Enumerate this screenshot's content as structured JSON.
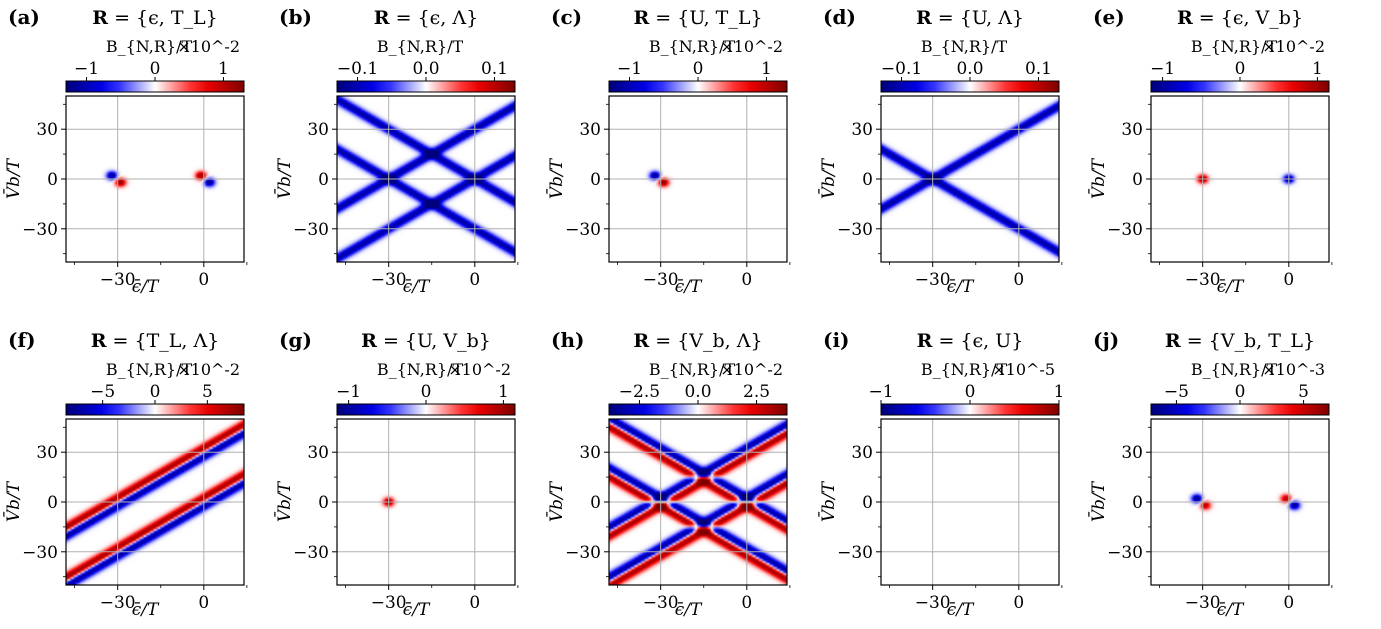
{
  "colors": {
    "neg": "#00007a",
    "mid": "#ffffff",
    "pos": "#800000",
    "grid": "#b0b0b0"
  },
  "chart_data": [
    {
      "panel_label": "(a)",
      "title": "R = {ϵ, T_L}",
      "type": "heatmap",
      "colorbar_label": "B_{N,R}/T",
      "colorbar_scale": "×10^-2",
      "colorbar_ticks": [
        "−1",
        "0",
        "1"
      ],
      "colorbar_range": [
        -1.3,
        1.3
      ],
      "xlabel": "ϵ̄/T",
      "ylabel": "V̄b/T",
      "xlim": [
        -48,
        14
      ],
      "ylim": [
        -50,
        50
      ],
      "xticks": [
        "−30",
        "0"
      ],
      "yticks": [
        "30",
        "0",
        "−30"
      ],
      "features": [
        {
          "kind": "blob",
          "x": -32,
          "y": 2,
          "sign": -1,
          "amp": 1.0
        },
        {
          "kind": "blob",
          "x": -29,
          "y": -2,
          "sign": 1,
          "amp": 1.0
        },
        {
          "kind": "blob",
          "x": -1,
          "y": 2,
          "sign": 1,
          "amp": 1.0
        },
        {
          "kind": "blob",
          "x": 2,
          "y": -2,
          "sign": -1,
          "amp": 1.0
        }
      ]
    },
    {
      "panel_label": "(b)",
      "title": "R = {ϵ, Λ}",
      "type": "heatmap",
      "colorbar_label": "B_{N,R}/T",
      "colorbar_scale": "",
      "colorbar_ticks": [
        "−0.1",
        "0.0",
        "0.1"
      ],
      "colorbar_range": [
        -0.13,
        0.13
      ],
      "xlabel": "ϵ̄/T",
      "ylabel": "V̄b/T",
      "xlim": [
        -48,
        14
      ],
      "ylim": [
        -50,
        50
      ],
      "xticks": [
        "−30",
        "0"
      ],
      "yticks": [
        "30",
        "0",
        "−30"
      ],
      "features": [
        {
          "kind": "line",
          "x0": -30,
          "y0": 0,
          "slope": 1,
          "sign": -1,
          "amp": 0.85
        },
        {
          "kind": "line",
          "x0": -30,
          "y0": 0,
          "slope": -1,
          "sign": -1,
          "amp": 0.85
        },
        {
          "kind": "line",
          "x0": 0,
          "y0": 0,
          "slope": 1,
          "sign": -1,
          "amp": 0.85
        },
        {
          "kind": "line",
          "x0": 0,
          "y0": 0,
          "slope": -1,
          "sign": -1,
          "amp": 0.85
        }
      ]
    },
    {
      "panel_label": "(c)",
      "title": "R = {U, T_L}",
      "type": "heatmap",
      "colorbar_label": "B_{N,R}/T",
      "colorbar_scale": "×10^-2",
      "colorbar_ticks": [
        "−1",
        "0",
        "1"
      ],
      "colorbar_range": [
        -1.3,
        1.3
      ],
      "xlabel": "ϵ̄/T",
      "ylabel": "V̄b/T",
      "xlim": [
        -48,
        14
      ],
      "ylim": [
        -50,
        50
      ],
      "xticks": [
        "−30",
        "0"
      ],
      "yticks": [
        "30",
        "0",
        "−30"
      ],
      "features": [
        {
          "kind": "blob",
          "x": -32,
          "y": 2,
          "sign": -1,
          "amp": 1.0
        },
        {
          "kind": "blob",
          "x": -29,
          "y": -2,
          "sign": 1,
          "amp": 1.0
        }
      ]
    },
    {
      "panel_label": "(d)",
      "title": "R = {U, Λ}",
      "type": "heatmap",
      "colorbar_label": "B_{N,R}/T",
      "colorbar_scale": "",
      "colorbar_ticks": [
        "−0.1",
        "0.0",
        "0.1"
      ],
      "colorbar_range": [
        -0.13,
        0.13
      ],
      "xlabel": "ϵ̄/T",
      "ylabel": "V̄b/T",
      "xlim": [
        -48,
        14
      ],
      "ylim": [
        -50,
        50
      ],
      "xticks": [
        "−30",
        "0"
      ],
      "yticks": [
        "30",
        "0",
        "−30"
      ],
      "features": [
        {
          "kind": "line",
          "x0": -30,
          "y0": 0,
          "slope": 1,
          "sign": -1,
          "amp": 0.85
        },
        {
          "kind": "line",
          "x0": -30,
          "y0": 0,
          "slope": -1,
          "sign": -1,
          "amp": 0.85
        }
      ]
    },
    {
      "panel_label": "(e)",
      "title": "R = {ϵ, V_b}",
      "type": "heatmap",
      "colorbar_label": "B_{N,R}/T",
      "colorbar_scale": "×10^-2",
      "colorbar_ticks": [
        "−1",
        "0",
        "1"
      ],
      "colorbar_range": [
        -1.15,
        1.15
      ],
      "xlabel": "ϵ̄/T",
      "ylabel": "V̄b/T",
      "xlim": [
        -48,
        14
      ],
      "ylim": [
        -50,
        50
      ],
      "xticks": [
        "−30",
        "0"
      ],
      "yticks": [
        "30",
        "0",
        "−30"
      ],
      "features": [
        {
          "kind": "blob",
          "x": -30,
          "y": 0,
          "sign": 1,
          "amp": 1.0
        },
        {
          "kind": "blob",
          "x": 0,
          "y": 0,
          "sign": -1,
          "amp": 1.0
        }
      ]
    },
    {
      "panel_label": "(f)",
      "title": "R = {T_L, Λ}",
      "type": "heatmap",
      "colorbar_label": "B_{N,R}/T",
      "colorbar_scale": "×10^-2",
      "colorbar_ticks": [
        "−5",
        "0",
        "5"
      ],
      "colorbar_range": [
        -8.5,
        8.5
      ],
      "xlabel": "ϵ̄/T",
      "ylabel": "V̄b/T",
      "xlim": [
        -48,
        14
      ],
      "ylim": [
        -50,
        50
      ],
      "xticks": [
        "−30",
        "0"
      ],
      "yticks": [
        "30",
        "0",
        "−30"
      ],
      "features": [
        {
          "kind": "line",
          "x0": -30,
          "y0": 0,
          "slope": 1,
          "sign": -1,
          "amp": 0.9,
          "offset": -1.7
        },
        {
          "kind": "line",
          "x0": -30,
          "y0": 0,
          "slope": 1,
          "sign": 1,
          "amp": 0.9,
          "offset": 1.7
        },
        {
          "kind": "line",
          "x0": 0,
          "y0": 0,
          "slope": 1,
          "sign": -1,
          "amp": 0.9,
          "offset": -1.7
        },
        {
          "kind": "line",
          "x0": 0,
          "y0": 0,
          "slope": 1,
          "sign": 1,
          "amp": 0.9,
          "offset": 1.7
        }
      ]
    },
    {
      "panel_label": "(g)",
      "title": "R = {U, V_b}",
      "type": "heatmap",
      "colorbar_label": "B_{N,R}/T",
      "colorbar_scale": "×10^-2",
      "colorbar_ticks": [
        "−1",
        "0",
        "1"
      ],
      "colorbar_range": [
        -1.15,
        1.15
      ],
      "xlabel": "ϵ̄/T",
      "ylabel": "V̄b/T",
      "xlim": [
        -48,
        14
      ],
      "ylim": [
        -50,
        50
      ],
      "xticks": [
        "−30",
        "0"
      ],
      "yticks": [
        "30",
        "0",
        "−30"
      ],
      "features": [
        {
          "kind": "blob",
          "x": -30,
          "y": 0,
          "sign": 1,
          "amp": 1.0
        }
      ]
    },
    {
      "panel_label": "(h)",
      "title": "R = {V_b, Λ}",
      "type": "heatmap",
      "colorbar_label": "B_{N,R}/T",
      "colorbar_scale": "×10^-2",
      "colorbar_ticks": [
        "−2.5",
        "0.0",
        "2.5"
      ],
      "colorbar_range": [
        -3.8,
        3.8
      ],
      "xlabel": "ϵ̄/T",
      "ylabel": "V̄b/T",
      "xlim": [
        -48,
        14
      ],
      "ylim": [
        -50,
        50
      ],
      "xticks": [
        "−30",
        "0"
      ],
      "yticks": [
        "30",
        "0",
        "−30"
      ],
      "features": [
        {
          "kind": "line",
          "x0": -30,
          "y0": 0,
          "slope": 1,
          "sign": 1,
          "amp": 0.9,
          "offset": -1.7
        },
        {
          "kind": "line",
          "x0": -30,
          "y0": 0,
          "slope": 1,
          "sign": -1,
          "amp": 0.9,
          "offset": 1.7
        },
        {
          "kind": "line",
          "x0": 0,
          "y0": 0,
          "slope": 1,
          "sign": 1,
          "amp": 0.9,
          "offset": -1.7
        },
        {
          "kind": "line",
          "x0": 0,
          "y0": 0,
          "slope": 1,
          "sign": -1,
          "amp": 0.9,
          "offset": 1.7
        },
        {
          "kind": "line",
          "x0": -30,
          "y0": 0,
          "slope": -1,
          "sign": 1,
          "amp": 0.9,
          "offset": -1.7
        },
        {
          "kind": "line",
          "x0": -30,
          "y0": 0,
          "slope": -1,
          "sign": -1,
          "amp": 0.9,
          "offset": 1.7
        },
        {
          "kind": "line",
          "x0": 0,
          "y0": 0,
          "slope": -1,
          "sign": 1,
          "amp": 0.9,
          "offset": -1.7
        },
        {
          "kind": "line",
          "x0": 0,
          "y0": 0,
          "slope": -1,
          "sign": -1,
          "amp": 0.9,
          "offset": 1.7
        }
      ]
    },
    {
      "panel_label": "(i)",
      "title": "R = {ϵ, U}",
      "type": "heatmap",
      "colorbar_label": "B_{N,R}/T",
      "colorbar_scale": "×10^-5",
      "colorbar_ticks": [
        "−1",
        "0",
        "1"
      ],
      "colorbar_range": [
        -1.0,
        1.0
      ],
      "xlabel": "ϵ̄/T",
      "ylabel": "V̄b/T",
      "xlim": [
        -48,
        14
      ],
      "ylim": [
        -50,
        50
      ],
      "xticks": [
        "−30",
        "0"
      ],
      "yticks": [
        "30",
        "0",
        "−30"
      ],
      "features": []
    },
    {
      "panel_label": "(j)",
      "title": "R = {V_b, T_L}",
      "type": "heatmap",
      "colorbar_label": "B_{N,R}/T",
      "colorbar_scale": "×10^-3",
      "colorbar_ticks": [
        "−5",
        "0",
        "5"
      ],
      "colorbar_range": [
        -7,
        7
      ],
      "xlabel": "ϵ̄/T",
      "ylabel": "V̄b/T",
      "xlim": [
        -48,
        14
      ],
      "ylim": [
        -50,
        50
      ],
      "xticks": [
        "−30",
        "0"
      ],
      "yticks": [
        "30",
        "0",
        "−30"
      ],
      "features": [
        {
          "kind": "blob",
          "x": -32,
          "y": 2,
          "sign": -1,
          "amp": 1.0
        },
        {
          "kind": "blob",
          "x": -29,
          "y": -2,
          "sign": 1,
          "amp": 0.8
        },
        {
          "kind": "blob",
          "x": -1,
          "y": 2,
          "sign": 1,
          "amp": 0.8
        },
        {
          "kind": "blob",
          "x": 2,
          "y": -2,
          "sign": -1,
          "amp": 1.0
        }
      ]
    }
  ]
}
